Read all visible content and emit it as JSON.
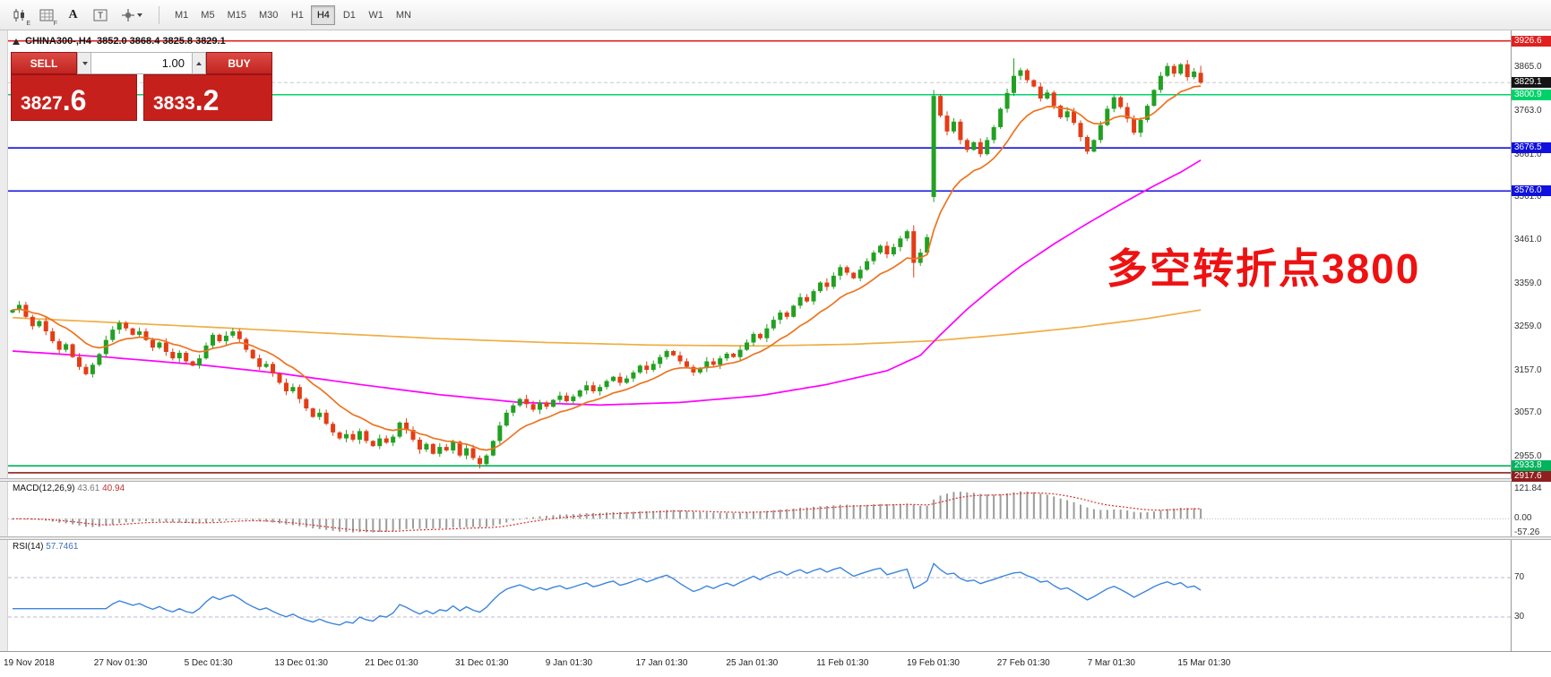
{
  "toolbar": {
    "icons": [
      {
        "name": "candlestick-icon",
        "sub": "E"
      },
      {
        "name": "grid-icon",
        "sub": "F"
      },
      {
        "name": "font-tool-icon",
        "glyph": "A"
      },
      {
        "name": "text-tool-icon",
        "glyph": "T"
      },
      {
        "name": "cursor-tool-icon"
      }
    ],
    "timeframes": [
      "M1",
      "M5",
      "M15",
      "M30",
      "H1",
      "H4",
      "D1",
      "W1",
      "MN"
    ],
    "active_timeframe": "H4"
  },
  "chart": {
    "symbol": "CHINA300-,H4",
    "ohlc": "3852.0 3868.4 3825.8 3829.1",
    "annotation": "多空转折点3800",
    "annotation_color": "#ee1111",
    "trade_panel": {
      "sell_label": "SELL",
      "buy_label": "BUY",
      "volume": "1.00",
      "sell_price_main": "3827",
      "sell_price_frac": ".6",
      "buy_price_main": "3833",
      "buy_price_frac": ".2"
    }
  },
  "macd": {
    "title": "MACD(12,26,9)",
    "value_main": "43.61",
    "value_signal": "40.94",
    "axis_labels": [
      "121.84",
      "0.00",
      "-57.26"
    ],
    "range": {
      "max": 121.84,
      "min": -57.26
    },
    "params": {
      "fast": 12,
      "slow": 26,
      "signal": 9
    },
    "histogram_color": "#9c9c9c",
    "signal_color": "#d93030"
  },
  "rsi": {
    "title": "RSI(14)",
    "value": "57.7461",
    "period": 14,
    "levels": [
      70,
      30
    ],
    "axis_labels": [
      "70",
      "30"
    ],
    "line_color": "#3d85dd",
    "level_color": "#b9b9cf"
  },
  "chart_data": {
    "type": "candlestick",
    "symbol": "CHINA300-",
    "timeframe": "H4",
    "last_ohlc": {
      "open": 3852.0,
      "high": 3868.4,
      "low": 3825.8,
      "close": 3829.1
    },
    "ylim": [
      2905,
      3951
    ],
    "y_ticks": [
      "3865.0",
      "3763.0",
      "3661.0",
      "3561.0",
      "3461.0",
      "3359.0",
      "3259.0",
      "3157.0",
      "3057.0",
      "2955.0"
    ],
    "x_labels": [
      "19 Nov 2018",
      "27 Nov 01:30",
      "5 Dec 01:30",
      "13 Dec 01:30",
      "21 Dec 01:30",
      "31 Dec 01:30",
      "9 Jan 01:30",
      "17 Jan 01:30",
      "25 Jan 01:30",
      "11 Feb 01:30",
      "19 Feb 01:30",
      "27 Feb 01:30",
      "7 Mar 01:30",
      "15 Mar 01:30"
    ],
    "levels": [
      {
        "label": "3926.6",
        "price": 3926.6,
        "color": "#e02020"
      },
      {
        "label": "3800.9",
        "price": 3800.9,
        "color": "#00d26a"
      },
      {
        "label": "3676.5",
        "price": 3676.5,
        "color": "#1111dd"
      },
      {
        "label": "3576.0",
        "price": 3576.0,
        "color": "#1111dd"
      },
      {
        "label": "2933.8",
        "price": 2933.8,
        "color": "#00b35c"
      },
      {
        "label": "2917.6",
        "price": 2917.6,
        "color": "#8f1f1f"
      }
    ],
    "current_price": {
      "price": 3829.1,
      "label": "3829.1",
      "color": "#141414"
    },
    "colors": {
      "up": "#22a022",
      "down": "#e33d16"
    },
    "layout": {
      "x_start": 14,
      "x_step": 7.45
    },
    "candles": {
      "first_open": 3292,
      "closes": [
        3298,
        3310,
        3282,
        3260,
        3272,
        3248,
        3225,
        3205,
        3218,
        3188,
        3165,
        3148,
        3170,
        3195,
        3228,
        3252,
        3268,
        3255,
        3240,
        3248,
        3228,
        3210,
        3222,
        3200,
        3185,
        3198,
        3178,
        3168,
        3185,
        3215,
        3240,
        3225,
        3238,
        3248,
        3230,
        3205,
        3185,
        3165,
        3172,
        3150,
        3128,
        3108,
        3118,
        3090,
        3068,
        3048,
        3058,
        3032,
        3012,
        2998,
        3008,
        2995,
        3015,
        2992,
        2980,
        2998,
        2988,
        3002,
        3035,
        3018,
        2995,
        2972,
        2985,
        2962,
        2978,
        2970,
        2990,
        2958,
        2975,
        2952,
        2938,
        2958,
        2992,
        3028,
        3058,
        3075,
        3090,
        3078,
        3065,
        3082,
        3072,
        3088,
        3098,
        3085,
        3096,
        3110,
        3122,
        3108,
        3118,
        3132,
        3142,
        3128,
        3138,
        3152,
        3168,
        3158,
        3172,
        3188,
        3202,
        3192,
        3178,
        3165,
        3152,
        3162,
        3178,
        3170,
        3185,
        3196,
        3188,
        3205,
        3222,
        3242,
        3232,
        3255,
        3275,
        3292,
        3282,
        3308,
        3328,
        3318,
        3342,
        3362,
        3352,
        3378,
        3398,
        3385,
        3372,
        3392,
        3412,
        3432,
        3448,
        3428,
        3445,
        3465,
        3482,
        3408,
        3432,
        3468,
        3798,
        3752,
        3715,
        3738,
        3695,
        3672,
        3690,
        3662,
        3695,
        3725,
        3768,
        3805,
        3845,
        3858,
        3835,
        3820,
        3792,
        3806,
        3775,
        3748,
        3762,
        3735,
        3702,
        3668,
        3695,
        3730,
        3768,
        3795,
        3772,
        3745,
        3712,
        3742,
        3775,
        3812,
        3845,
        3868,
        3850,
        3872,
        3842,
        3855,
        3829
      ],
      "overrides": {
        "70": [
          2952,
          2958,
          2928,
          2938
        ],
        "135": [
          3482,
          3496,
          3374,
          3408
        ],
        "138": [
          3562,
          3812,
          3550,
          3798
        ],
        "150": [
          3805,
          3886,
          3798,
          3845
        ],
        "178": [
          3852,
          3868.4,
          3825.8,
          3829.1
        ]
      }
    },
    "moving_averages": {
      "fast_period": 12,
      "colors": {
        "fast": "#ec7420",
        "mid": "#ff00ff",
        "slow": "#efae45"
      },
      "mid_anchors": [
        [
          0,
          3202
        ],
        [
          14,
          3188
        ],
        [
          28,
          3170
        ],
        [
          40,
          3150
        ],
        [
          52,
          3124
        ],
        [
          64,
          3100
        ],
        [
          76,
          3082
        ],
        [
          88,
          3076
        ],
        [
          100,
          3082
        ],
        [
          112,
          3098
        ],
        [
          122,
          3124
        ],
        [
          131,
          3156
        ],
        [
          136,
          3192
        ],
        [
          139,
          3240
        ],
        [
          143,
          3300
        ],
        [
          147,
          3352
        ],
        [
          151,
          3400
        ],
        [
          156,
          3452
        ],
        [
          161,
          3500
        ],
        [
          166,
          3545
        ],
        [
          171,
          3588
        ],
        [
          175,
          3620
        ],
        [
          178,
          3648
        ]
      ],
      "slow_anchors": [
        [
          0,
          3280
        ],
        [
          16,
          3268
        ],
        [
          32,
          3256
        ],
        [
          48,
          3243
        ],
        [
          64,
          3231
        ],
        [
          80,
          3222
        ],
        [
          96,
          3216
        ],
        [
          112,
          3214
        ],
        [
          126,
          3218
        ],
        [
          138,
          3226
        ],
        [
          150,
          3242
        ],
        [
          160,
          3258
        ],
        [
          170,
          3278
        ],
        [
          178,
          3298
        ]
      ]
    }
  }
}
